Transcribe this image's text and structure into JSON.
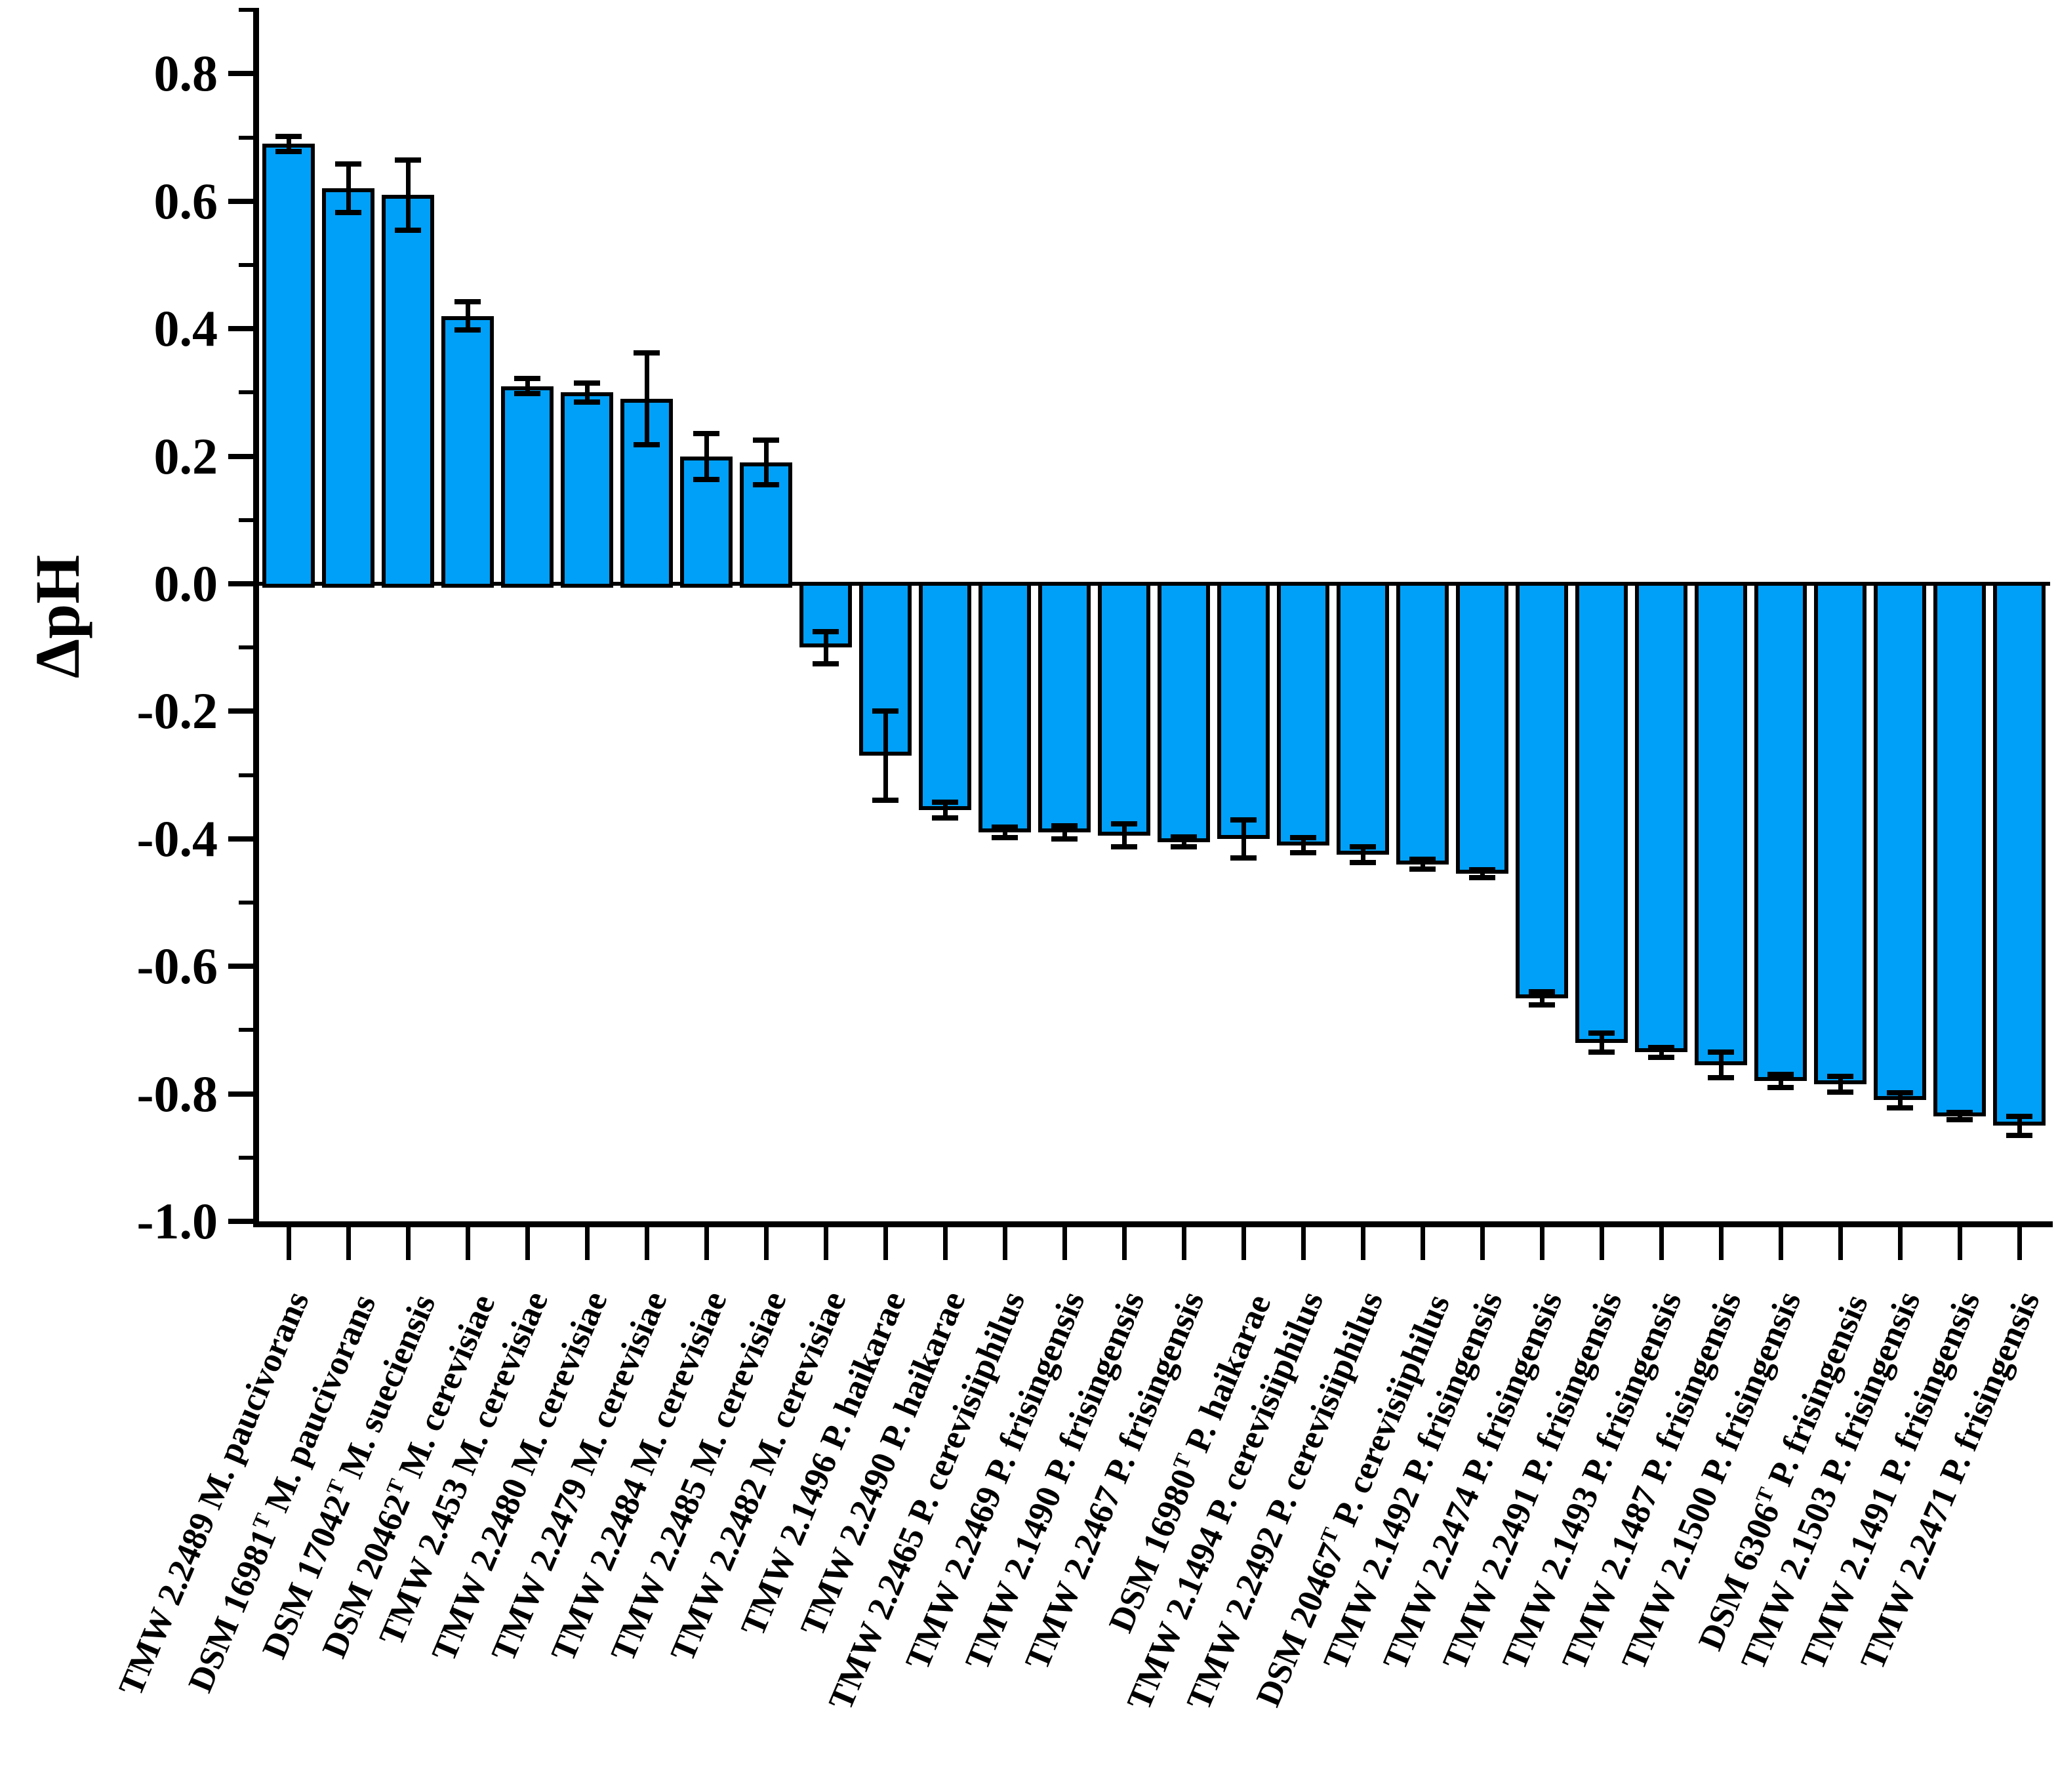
{
  "figure": {
    "ylabel": "ΔpH"
  },
  "chart_data": {
    "type": "bar",
    "title": "",
    "xlabel": "",
    "ylabel": "ΔpH",
    "ylim": [
      -1.0,
      0.9
    ],
    "grid": false,
    "legend": "none",
    "bar_color": "#00A0F8",
    "bar_edge_color": "#000000",
    "error_bar_color": "#000000",
    "y_ticks_major": [
      0.8,
      0.6,
      0.4,
      0.2,
      0.0,
      -0.2,
      -0.4,
      -0.6,
      -0.8,
      -1.0
    ],
    "y_ticks_minor": [
      0.9,
      0.7,
      0.5,
      0.3,
      0.1,
      -0.1,
      -0.3,
      -0.5,
      -0.7,
      -0.9
    ],
    "categories": [
      "TMW 2.2489 M. paucivorans",
      "DSM 16981ᵀ M. paucivorans",
      "DSM 17042ᵀ M. sueciensis",
      "DSM 20462ᵀ M. cerevisiae",
      "TMW 2.453 M. cerevisiae",
      "TMW 2.2480 M. cerevisiae",
      "TMW 2.2479 M. cerevisiae",
      "TMW 2.2484 M. cerevisiae",
      "TMW 2.2485 M. cerevisiae",
      "TMW 2.2482 M. cerevisiae",
      "TMW 2.1496 P. haikarae",
      "TMW 2.2490 P. haikarae",
      "TMW 2.2465 P. cerevisiiphilus",
      "TMW 2.2469 P. frisingensis",
      "TMW 2.1490 P. frisingensis",
      "TMW 2.2467 P. frisingensis",
      "DSM 16980ᵀ P. haikarae",
      "TMW 2.1494 P. cerevisiiphilus",
      "TMW 2.2492 P. cerevisiiphilus",
      "DSM 20467ᵀ P. cerevisiiphilus",
      "TMW 2.1492 P. frisingensis",
      "TMW 2.2474 P. frisingensis",
      "TMW 2.2491 P. frisingensis",
      "TMW 2.1493 P. frisingensis",
      "TMW 2.1487 P. frisingensis",
      "TMW 2.1500 P. frisingensis",
      "DSM 6306ᵀ P. frisingensis",
      "TMW 2.1503 P. frisingensis",
      "TMW 2.1491 P. frisingensis",
      "TMW 2.2471 P. frisingensis"
    ],
    "values": [
      0.69,
      0.62,
      0.61,
      0.42,
      0.31,
      0.3,
      0.29,
      0.2,
      0.19,
      -0.1,
      -0.27,
      -0.355,
      -0.39,
      -0.39,
      -0.395,
      -0.405,
      -0.4,
      -0.41,
      -0.425,
      -0.44,
      -0.455,
      -0.65,
      -0.72,
      -0.735,
      -0.755,
      -0.78,
      -0.785,
      -0.81,
      -0.835,
      -0.85
    ],
    "errors": [
      0.012,
      0.038,
      0.055,
      0.022,
      0.012,
      0.015,
      0.072,
      0.036,
      0.035,
      0.025,
      0.07,
      0.012,
      0.008,
      0.01,
      0.018,
      0.008,
      0.03,
      0.012,
      0.012,
      0.008,
      0.006,
      0.01,
      0.015,
      0.008,
      0.02,
      0.01,
      0.012,
      0.012,
      0.006,
      0.015
    ]
  }
}
